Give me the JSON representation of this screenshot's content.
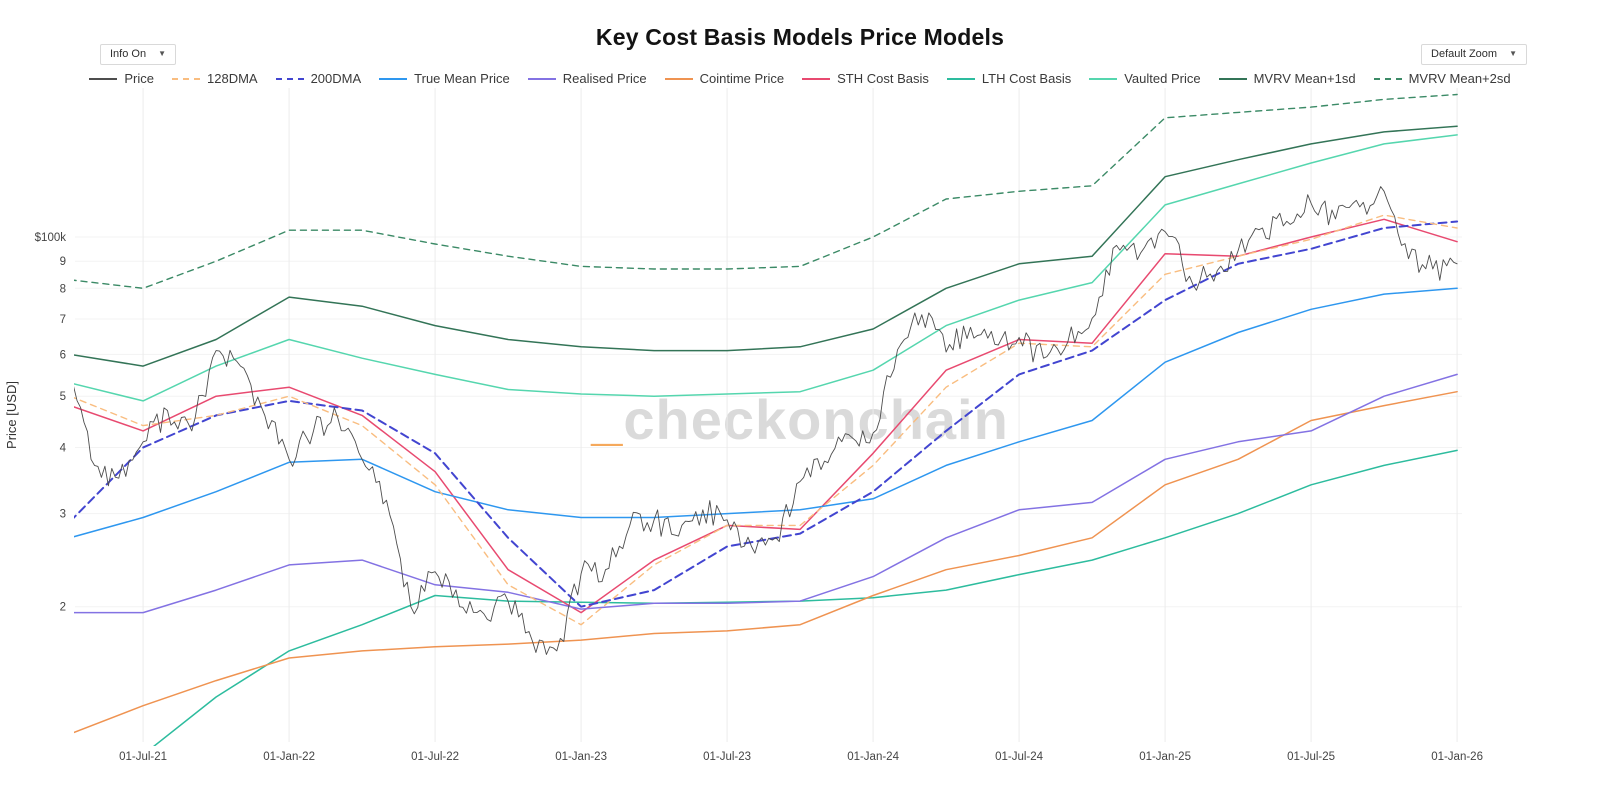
{
  "header": {
    "title": "Key Cost Basis Models Price Models"
  },
  "controls": {
    "info_label": "Info On",
    "zoom_label": "Default Zoom",
    "caret_icon": "▼"
  },
  "watermark": {
    "prefix": "_",
    "text": "checkonchain"
  },
  "chart_data": {
    "type": "line",
    "title": "Key Cost Basis Models Price Models",
    "xlabel": "",
    "ylabel": "Price [USD]",
    "y_scale": "log",
    "grid": true,
    "legend_position": "top",
    "units": "values_kusd are thousands of USD",
    "x_epoch_note": "month offsets from Jan-2021 (6 = 01-Jul-21, 60 = 01-Jan-26)",
    "xlim_months": [
      3.2,
      60.2
    ],
    "ylim_kusd": [
      11.1,
      191.3
    ],
    "x_ticks": [
      {
        "label": "01-Jul-21",
        "month": 6
      },
      {
        "label": "01-Jan-22",
        "month": 12
      },
      {
        "label": "01-Jul-22",
        "month": 18
      },
      {
        "label": "01-Jan-23",
        "month": 24
      },
      {
        "label": "01-Jul-23",
        "month": 30
      },
      {
        "label": "01-Jan-24",
        "month": 36
      },
      {
        "label": "01-Jul-24",
        "month": 42
      },
      {
        "label": "01-Jan-25",
        "month": 48
      },
      {
        "label": "01-Jul-25",
        "month": 54
      },
      {
        "label": "01-Jan-26",
        "month": 60
      }
    ],
    "y_ticks": [
      {
        "label": "$100k",
        "value_kusd": 100
      },
      {
        "label": "9",
        "value_kusd": 90
      },
      {
        "label": "8",
        "value_kusd": 80
      },
      {
        "label": "7",
        "value_kusd": 70
      },
      {
        "label": "6",
        "value_kusd": 60
      },
      {
        "label": "5",
        "value_kusd": 50
      },
      {
        "label": "4",
        "value_kusd": 40
      },
      {
        "label": "3",
        "value_kusd": 30
      },
      {
        "label": "2",
        "value_kusd": 20
      }
    ],
    "x_monthly": [
      3,
      4,
      5,
      6,
      7,
      8,
      9,
      10,
      11,
      12,
      13,
      14,
      15,
      16,
      17,
      18,
      19,
      20,
      21,
      22,
      23,
      24,
      25,
      26,
      27,
      28,
      29,
      30,
      31,
      32,
      33,
      34,
      35,
      36,
      37,
      38,
      39,
      40,
      41,
      42,
      43,
      44,
      45,
      46,
      47,
      48,
      49,
      50,
      51,
      52,
      53,
      54,
      55,
      56,
      57,
      58,
      59,
      60
    ],
    "x_quarterly": [
      3,
      6,
      9,
      12,
      15,
      18,
      21,
      24,
      27,
      30,
      33,
      36,
      39,
      42,
      45,
      48,
      51,
      54,
      57,
      60
    ],
    "series": [
      {
        "name": "Price",
        "color": "#4d4d4d",
        "dash": "solid",
        "width": 0.9,
        "x": "monthly",
        "jagged": true,
        "values_kusd": [
          57,
          37,
          35,
          41,
          47,
          43,
          61,
          57,
          46,
          38,
          43,
          45.5,
          38,
          31.8,
          20,
          23.3,
          20,
          19.4,
          20.5,
          17.2,
          16.5,
          23.1,
          23.5,
          28.5,
          29.2,
          27.2,
          30.5,
          29.2,
          26,
          27,
          34.5,
          37.7,
          42.3,
          42.6,
          61.2,
          71.3,
          60.6,
          67.5,
          62.7,
          64.6,
          59,
          63.3,
          70.2,
          96.4,
          93.4,
          102.4,
          84.3,
          82.5,
          94.2,
          104,
          107.1,
          115.8,
          108.2,
          114,
          122,
          91,
          87,
          89
        ]
      },
      {
        "name": "128DMA",
        "color": "#f9bd80",
        "dash": "dash",
        "width": 1.4,
        "x": "quarterly",
        "values_kusd": [
          50,
          44,
          46,
          50,
          44,
          34,
          22,
          18.5,
          24,
          28.5,
          28.5,
          37,
          52,
          63,
          62,
          85,
          92,
          99,
          110,
          104
        ]
      },
      {
        "name": "200DMA",
        "color": "#4245d0",
        "dash": "dash",
        "width": 2,
        "x": "quarterly",
        "values_kusd": [
          29,
          40,
          46,
          49,
          47,
          39,
          27,
          20,
          21.5,
          26,
          27.5,
          33,
          43,
          55,
          61,
          76,
          89,
          95,
          104,
          107
        ]
      },
      {
        "name": "True Mean Price",
        "color": "#2e97ef",
        "dash": "solid",
        "width": 1.5,
        "x": "quarterly",
        "values_kusd": [
          27,
          29.5,
          33,
          37.5,
          38,
          33,
          30.5,
          29.5,
          29.5,
          30,
          30.5,
          32,
          37,
          41,
          45,
          58,
          66,
          73,
          78,
          80
        ]
      },
      {
        "name": "Realised Price",
        "color": "#8372e3",
        "dash": "solid",
        "width": 1.5,
        "x": "quarterly",
        "values_kusd": [
          19.5,
          19.5,
          21.5,
          24,
          24.5,
          22,
          21.3,
          19.8,
          20.3,
          20.3,
          20.5,
          22.8,
          27,
          30.5,
          31.5,
          38,
          41,
          43,
          50,
          55
        ]
      },
      {
        "name": "Cointime Price",
        "color": "#ef9351",
        "dash": "solid",
        "width": 1.5,
        "x": "quarterly",
        "values_kusd": [
          11.5,
          13,
          14.5,
          16,
          16.5,
          16.8,
          17,
          17.3,
          17.8,
          18,
          18.5,
          21,
          23.5,
          25,
          27,
          34,
          38,
          45,
          48,
          51
        ]
      },
      {
        "name": "STH Cost Basis",
        "color": "#e84a70",
        "dash": "solid",
        "width": 1.5,
        "x": "quarterly",
        "values_kusd": [
          48,
          43,
          50,
          52,
          46,
          36,
          23.5,
          19.5,
          24.5,
          28.5,
          28,
          39,
          56,
          64,
          63,
          93,
          92,
          100,
          108,
          98
        ]
      },
      {
        "name": "LTH Cost Basis",
        "color": "#2dbc9e",
        "dash": "solid",
        "width": 1.5,
        "x": "quarterly",
        "values_kusd": [
          8.8,
          10.5,
          13.5,
          16.5,
          18.5,
          21,
          20.5,
          20.4,
          20.3,
          20.4,
          20.5,
          20.8,
          21.5,
          23,
          24.5,
          27,
          30,
          34,
          37,
          39.5
        ]
      },
      {
        "name": "Vaulted Price",
        "color": "#55d6ae",
        "dash": "solid",
        "width": 1.5,
        "x": "quarterly",
        "values_kusd": [
          53,
          49,
          57,
          64,
          59,
          55,
          51.5,
          50.5,
          50,
          50.5,
          51,
          56,
          68,
          76,
          82,
          115,
          126,
          138,
          150,
          156
        ]
      },
      {
        "name": "MVRV Mean+1sd",
        "color": "#337457",
        "dash": "solid",
        "width": 1.5,
        "x": "quarterly",
        "values_kusd": [
          60,
          57,
          64,
          77,
          74,
          68,
          64,
          62,
          61,
          61,
          62,
          67,
          80,
          89,
          92,
          130,
          140,
          150,
          158,
          162
        ]
      },
      {
        "name": "MVRV Mean+2sd",
        "color": "#3b8a66",
        "dash": "dash",
        "width": 1.4,
        "x": "quarterly",
        "values_kusd": [
          83,
          80,
          90,
          103,
          103,
          97,
          92,
          88,
          87,
          87,
          88,
          100,
          118,
          122,
          125,
          168,
          172,
          176,
          182,
          186
        ]
      }
    ]
  }
}
